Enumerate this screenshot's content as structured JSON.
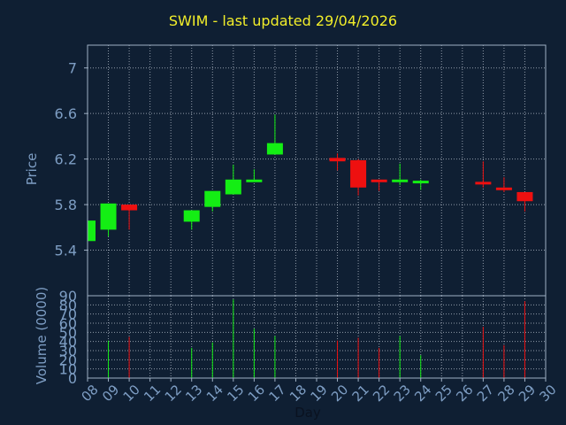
{
  "chart_data": {
    "type": "candlestick",
    "title": "SWIM - last updated 29/04/2026",
    "xlabel": "Day",
    "price_panel": {
      "ylabel": "Price",
      "ylim": [
        5.0,
        7.2
      ],
      "yticks": [
        "5.4",
        "5.8",
        "6.2",
        "6.6",
        "7"
      ]
    },
    "volume_panel": {
      "ylabel": "Volume (0000)",
      "ylim": [
        0,
        90
      ],
      "yticks": [
        "0",
        "10",
        "20",
        "30",
        "40",
        "50",
        "60",
        "70",
        "80",
        "90"
      ]
    },
    "x_range": [
      8,
      30
    ],
    "x_ticks": [
      "08",
      "09",
      "10",
      "11",
      "12",
      "13",
      "14",
      "15",
      "16",
      "17",
      "18",
      "19",
      "20",
      "21",
      "22",
      "23",
      "24",
      "25",
      "26",
      "27",
      "28",
      "29",
      "30"
    ],
    "grid": true,
    "candles": [
      {
        "day": 8,
        "open": 5.48,
        "close": 5.66,
        "high": 5.66,
        "low": 5.48
      },
      {
        "day": 9,
        "open": 5.58,
        "close": 5.81,
        "high": 5.81,
        "low": 5.52
      },
      {
        "day": 10,
        "open": 5.8,
        "close": 5.75,
        "high": 5.8,
        "low": 5.58
      },
      {
        "day": 13,
        "open": 5.65,
        "close": 5.75,
        "high": 5.75,
        "low": 5.58
      },
      {
        "day": 14,
        "open": 5.78,
        "close": 5.92,
        "high": 5.92,
        "low": 5.74
      },
      {
        "day": 15,
        "open": 5.89,
        "close": 6.02,
        "high": 6.15,
        "low": 5.89
      },
      {
        "day": 16,
        "open": 6.0,
        "close": 6.02,
        "high": 6.11,
        "low": 6.0
      },
      {
        "day": 17,
        "open": 6.24,
        "close": 6.34,
        "high": 6.59,
        "low": 6.24
      },
      {
        "day": 20,
        "open": 6.21,
        "close": 6.18,
        "high": 6.25,
        "low": 6.1
      },
      {
        "day": 21,
        "open": 6.19,
        "close": 5.95,
        "high": 6.2,
        "low": 5.88
      },
      {
        "day": 22,
        "open": 6.02,
        "close": 6.0,
        "high": 6.02,
        "low": 5.92
      },
      {
        "day": 23,
        "open": 6.0,
        "close": 6.02,
        "high": 6.16,
        "low": 5.97
      },
      {
        "day": 24,
        "open": 6.0,
        "close": 6.01,
        "high": 6.02,
        "low": 5.93
      },
      {
        "day": 27,
        "open": 6.0,
        "close": 5.98,
        "high": 6.18,
        "low": 5.95
      },
      {
        "day": 28,
        "open": 5.95,
        "close": 5.93,
        "high": 6.04,
        "low": 5.91
      },
      {
        "day": 29,
        "open": 5.91,
        "close": 5.83,
        "high": 5.91,
        "low": 5.74
      }
    ],
    "volume": [
      {
        "day": 9,
        "value": 41
      },
      {
        "day": 10,
        "value": 45
      },
      {
        "day": 13,
        "value": 33
      },
      {
        "day": 14,
        "value": 39
      },
      {
        "day": 15,
        "value": 86
      },
      {
        "day": 16,
        "value": 54
      },
      {
        "day": 17,
        "value": 46
      },
      {
        "day": 20,
        "value": 41
      },
      {
        "day": 21,
        "value": 44
      },
      {
        "day": 22,
        "value": 33
      },
      {
        "day": 23,
        "value": 46
      },
      {
        "day": 24,
        "value": 25
      },
      {
        "day": 27,
        "value": 56
      },
      {
        "day": 28,
        "value": 36
      },
      {
        "day": 29,
        "value": 84
      }
    ],
    "colors": {
      "background": "#0f1f33",
      "plot_background": "#0f1f33",
      "axis": "#9fb0c4",
      "grid": "#c8d0dc",
      "tick_text": "#7e9ec4",
      "title": "#f2ee2a",
      "up": "#14ee14",
      "down": "#ee1010",
      "xlabel": "#0a1220"
    }
  }
}
